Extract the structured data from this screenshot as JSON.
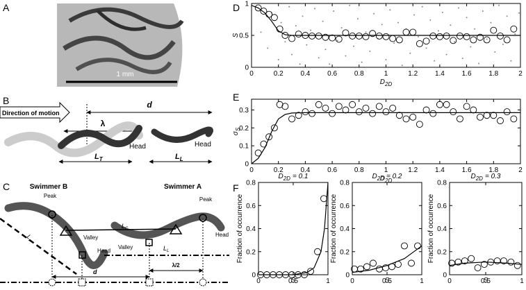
{
  "panel_labels": [
    "A",
    "B",
    "C",
    "D",
    "E",
    "F"
  ],
  "panel_a": {
    "scale": "1 mm"
  },
  "panel_b": {
    "direction": "Direction of motion",
    "d": "d",
    "lambda": "λ",
    "head_1": "Head",
    "head_2": "Head",
    "lt": {
      "text": "L",
      "sub": "T"
    },
    "ll": {
      "text": "L",
      "sub": "L"
    }
  },
  "panel_c": {
    "swimmer_b": "Swimmer B",
    "swimmer_a": "Swimmer A",
    "peak_1": "Peak",
    "peak_2": "Peak",
    "valley_1": "Valley",
    "valley_2": "Valley",
    "head_1": "Head",
    "head_2": "Head",
    "lc": {
      "text": "L",
      "sub": "C"
    },
    "lr": {
      "text": "L",
      "sub": "r"
    },
    "ll": {
      "text": "L",
      "sub": "L"
    },
    "half_lambda": "λ/2",
    "d": "d"
  },
  "chart_data": [
    {
      "type": "scatter",
      "xlabel": {
        "text": "D",
        "sub": "2D"
      },
      "ylabel": "S",
      "xlim": [
        0,
        2
      ],
      "ylim": [
        0,
        1
      ],
      "xticks": [
        0,
        0.2,
        0.4,
        0.6,
        0.8,
        1,
        1.2,
        1.4,
        1.6,
        1.8,
        2
      ],
      "yticks": [
        0,
        0.5,
        1
      ],
      "series": [
        {
          "kind": "dots",
          "color": "#888888",
          "x": [
            0.07,
            0.12,
            0.15,
            0.2,
            0.22,
            0.25,
            0.28,
            0.3,
            0.33,
            0.36,
            0.38,
            0.41,
            0.44,
            0.47,
            0.5,
            0.53,
            0.55,
            0.58,
            0.61,
            0.64,
            0.67,
            0.7,
            0.73,
            0.76,
            0.79,
            0.82,
            0.85,
            0.88,
            0.91,
            0.94,
            0.97,
            1.0,
            1.03,
            1.06,
            1.09,
            1.12,
            1.15,
            1.18,
            1.21,
            1.24,
            1.27,
            1.3,
            1.33,
            1.36,
            1.39,
            1.42,
            1.45,
            1.48,
            1.51,
            1.54,
            1.57,
            1.6,
            1.63,
            1.66,
            1.69,
            1.72,
            1.75,
            1.78,
            1.81,
            1.84,
            1.87,
            1.9,
            1.93,
            1.96,
            1.99
          ],
          "y": [
            0.55,
            0.3,
            0.85,
            0.12,
            0.7,
            0.4,
            0.95,
            0.2,
            0.65,
            0.05,
            0.8,
            0.35,
            0.58,
            0.92,
            0.15,
            0.72,
            0.28,
            0.05,
            0.88,
            0.42,
            0.62,
            0.18,
            0.97,
            0.33,
            0.76,
            0.08,
            0.55,
            0.25,
            0.84,
            0.45,
            0.67,
            0.12,
            0.9,
            0.38,
            0.7,
            0.03,
            0.6,
            0.22,
            0.82,
            0.48,
            0.95,
            0.3,
            0.74,
            0.1,
            0.57,
            0.86,
            0.2,
            0.66,
            0.4,
            0.93,
            0.14,
            0.78,
            0.32,
            0.6,
            0.06,
            0.88,
            0.44,
            0.7,
            0.24,
            0.97,
            0.36,
            0.8,
            0.1,
            0.52,
            0.85
          ]
        },
        {
          "kind": "circles",
          "color": "#000000",
          "x": [
            0.05,
            0.09,
            0.13,
            0.17,
            0.21,
            0.25,
            0.3,
            0.35,
            0.4,
            0.45,
            0.5,
            0.55,
            0.6,
            0.65,
            0.7,
            0.75,
            0.8,
            0.85,
            0.9,
            0.95,
            1.0,
            1.05,
            1.1,
            1.15,
            1.2,
            1.25,
            1.3,
            1.35,
            1.4,
            1.45,
            1.5,
            1.55,
            1.6,
            1.65,
            1.7,
            1.75,
            1.8,
            1.85,
            1.9,
            1.95
          ],
          "y": [
            0.93,
            0.88,
            0.83,
            0.78,
            0.6,
            0.5,
            0.45,
            0.52,
            0.5,
            0.49,
            0.49,
            0.47,
            0.46,
            0.44,
            0.54,
            0.49,
            0.49,
            0.48,
            0.53,
            0.49,
            0.48,
            0.45,
            0.43,
            0.55,
            0.55,
            0.37,
            0.41,
            0.49,
            0.48,
            0.49,
            0.42,
            0.49,
            0.48,
            0.43,
            0.47,
            0.43,
            0.58,
            0.49,
            0.43,
            0.6
          ]
        },
        {
          "kind": "line",
          "color": "#000000",
          "x": [
            0,
            0.05,
            0.1,
            0.15,
            0.2,
            0.25,
            0.3,
            2
          ],
          "y": [
            0.97,
            0.93,
            0.85,
            0.72,
            0.57,
            0.51,
            0.5,
            0.5
          ]
        }
      ]
    },
    {
      "type": "scatter",
      "xlabel": {
        "text": "D",
        "sub": "2D"
      },
      "ylabel": {
        "text": "σ",
        "sub": "S"
      },
      "xlim": [
        0,
        2
      ],
      "ylim": [
        0,
        0.36
      ],
      "xticks": [
        0,
        0.2,
        0.4,
        0.6,
        0.8,
        1,
        1.2,
        1.4,
        1.6,
        1.8,
        2
      ],
      "yticks": [
        0,
        0.1,
        0.2,
        0.3
      ],
      "series": [
        {
          "kind": "circles",
          "color": "#000000",
          "x": [
            0.05,
            0.09,
            0.13,
            0.17,
            0.21,
            0.25,
            0.3,
            0.35,
            0.4,
            0.45,
            0.5,
            0.55,
            0.6,
            0.65,
            0.7,
            0.75,
            0.8,
            0.85,
            0.9,
            0.95,
            1.0,
            1.05,
            1.1,
            1.15,
            1.2,
            1.25,
            1.3,
            1.35,
            1.4,
            1.45,
            1.5,
            1.55,
            1.6,
            1.65,
            1.7,
            1.75,
            1.8,
            1.85,
            1.9,
            1.95
          ],
          "y": [
            0.06,
            0.11,
            0.15,
            0.2,
            0.33,
            0.32,
            0.25,
            0.27,
            0.29,
            0.28,
            0.33,
            0.31,
            0.28,
            0.32,
            0.3,
            0.33,
            0.29,
            0.31,
            0.28,
            0.32,
            0.29,
            0.31,
            0.27,
            0.25,
            0.26,
            0.22,
            0.3,
            0.28,
            0.33,
            0.33,
            0.29,
            0.25,
            0.32,
            0.3,
            0.26,
            0.27,
            0.27,
            0.24,
            0.29,
            0.25
          ]
        },
        {
          "kind": "line",
          "color": "#000000",
          "x": [
            0,
            0.05,
            0.1,
            0.15,
            0.2,
            0.25,
            0.3,
            0.4,
            2
          ],
          "y": [
            0,
            0.03,
            0.09,
            0.18,
            0.25,
            0.275,
            0.283,
            0.285,
            0.285
          ]
        }
      ]
    },
    {
      "type": "scatter",
      "title": {
        "text": "D",
        "sub": "2D",
        "rest": "= 0.1"
      },
      "xlabel": "S",
      "ylabel": "Fraction of occurrence",
      "xlim": [
        0,
        1
      ],
      "ylim": [
        0,
        0.8
      ],
      "xticks": [
        0,
        0.5,
        1
      ],
      "yticks": [
        0,
        0.2,
        0.4,
        0.6,
        0.8
      ],
      "series": [
        {
          "kind": "circles",
          "color": "#000000",
          "x": [
            0.03,
            0.12,
            0.21,
            0.3,
            0.39,
            0.48,
            0.57,
            0.66,
            0.75,
            0.85,
            0.94
          ],
          "y": [
            0,
            0,
            0,
            0,
            0,
            0,
            0,
            0,
            0.03,
            0.2,
            0.66
          ]
        },
        {
          "kind": "line",
          "color": "#000000",
          "x": [
            0,
            0.5,
            0.7,
            0.8,
            0.9,
            0.95,
            1
          ],
          "y": [
            0,
            0,
            0.02,
            0.06,
            0.2,
            0.4,
            0.8
          ]
        }
      ]
    },
    {
      "type": "scatter",
      "title": {
        "text": "D",
        "sub": "2D",
        "rest": "= 0.2"
      },
      "xlabel": "S",
      "ylabel": "Fraction of occurrence",
      "xlim": [
        0,
        1
      ],
      "ylim": [
        0,
        0.8
      ],
      "xticks": [
        0,
        0.5,
        1
      ],
      "yticks": [
        0,
        0.2,
        0.4,
        0.6,
        0.8
      ],
      "series": [
        {
          "kind": "circles",
          "color": "#000000",
          "x": [
            0.03,
            0.12,
            0.21,
            0.3,
            0.39,
            0.48,
            0.57,
            0.66,
            0.75,
            0.85,
            0.94
          ],
          "y": [
            0.05,
            0.05,
            0.07,
            0.1,
            0.05,
            0.06,
            0.07,
            0.09,
            0.25,
            0.1,
            0.25
          ]
        },
        {
          "kind": "line",
          "color": "#000000",
          "x": [
            0,
            0.25,
            0.5,
            0.75,
            1
          ],
          "y": [
            0.02,
            0.04,
            0.08,
            0.14,
            0.25
          ]
        }
      ]
    },
    {
      "type": "scatter",
      "title": {
        "text": "D",
        "sub": "2D",
        "rest": "= 0.3"
      },
      "xlabel": "S",
      "ylabel": "Fraction of occurrence",
      "xlim": [
        0,
        1
      ],
      "ylim": [
        0,
        0.8
      ],
      "xticks": [
        0,
        0.5,
        1
      ],
      "yticks": [
        0,
        0.2,
        0.4,
        0.6,
        0.8
      ],
      "series": [
        {
          "kind": "circles",
          "color": "#000000",
          "x": [
            0.03,
            0.12,
            0.21,
            0.3,
            0.39,
            0.48,
            0.57,
            0.66,
            0.75,
            0.85,
            0.94
          ],
          "y": [
            0.1,
            0.11,
            0.12,
            0.14,
            0.06,
            0.09,
            0.11,
            0.12,
            0.12,
            0.11,
            0.08
          ]
        },
        {
          "kind": "line",
          "color": "#000000",
          "x": [
            0,
            0.2,
            0.5,
            0.8,
            1
          ],
          "y": [
            0.08,
            0.1,
            0.11,
            0.1,
            0.09
          ]
        }
      ]
    }
  ]
}
